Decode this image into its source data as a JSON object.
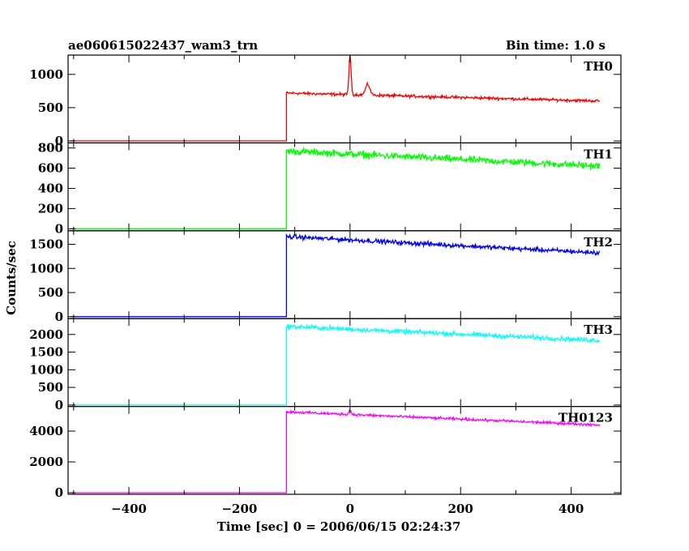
{
  "chart_data": {
    "type": "line",
    "title": "ae060615022437_wam3_trn",
    "bin_time": "Bin time: 1.0 s",
    "ylabel": "Counts/sec",
    "xlabel": "Time [sec] 0 = 2006/06/15 02:24:37",
    "xlim": [
      -510,
      490
    ],
    "xticks": [
      -400,
      -200,
      0,
      200,
      400
    ],
    "xtick_labels": [
      "−400",
      "−200",
      "0",
      "200",
      "400"
    ],
    "onset_time": -115,
    "end_time": 452,
    "panels": [
      {
        "name": "TH0",
        "color": "#ff0000",
        "ylim": [
          -30,
          1290
        ],
        "yticks": [
          0,
          500,
          1000
        ],
        "ytick_labels": [
          "0",
          "500",
          "1000"
        ],
        "pre_level": 0,
        "start_level": 720,
        "end_level": 600,
        "noise": 18,
        "spikes": [
          {
            "t": 0,
            "peak": 1290,
            "width": 2
          },
          {
            "t": 32,
            "peak": 880,
            "width": 4
          }
        ]
      },
      {
        "name": "TH1",
        "color": "#00ff00",
        "ylim": [
          -20,
          850
        ],
        "yticks": [
          0,
          200,
          400,
          600,
          800
        ],
        "ytick_labels": [
          "0",
          "200",
          "400",
          "600",
          "800"
        ],
        "pre_level": 0,
        "start_level": 770,
        "end_level": 620,
        "noise": 30,
        "spikes": []
      },
      {
        "name": "TH2",
        "color": "#0000ff",
        "ylim": [
          -40,
          1780
        ],
        "yticks": [
          0,
          500,
          1000,
          1500
        ],
        "ytick_labels": [
          "0",
          "500",
          "1000",
          "1500"
        ],
        "pre_level": 0,
        "start_level": 1660,
        "end_level": 1320,
        "noise": 40,
        "spikes": []
      },
      {
        "name": "TH3",
        "color": "#00ffff",
        "ylim": [
          -40,
          2450
        ],
        "yticks": [
          0,
          500,
          1000,
          1500,
          2000
        ],
        "ytick_labels": [
          "0",
          "500",
          "1000",
          "1500",
          "2000"
        ],
        "pre_level": 0,
        "start_level": 2230,
        "end_level": 1830,
        "noise": 55,
        "spikes": []
      },
      {
        "name": "TH0123",
        "color": "#ff00ff",
        "ylim": [
          -100,
          5600
        ],
        "yticks": [
          0,
          2000,
          4000
        ],
        "ytick_labels": [
          "0",
          "2000",
          "4000"
        ],
        "pre_level": 0,
        "start_level": 5250,
        "end_level": 4400,
        "noise": 70,
        "spikes": [
          {
            "t": 0,
            "peak": 5550,
            "width": 2
          }
        ]
      }
    ]
  }
}
